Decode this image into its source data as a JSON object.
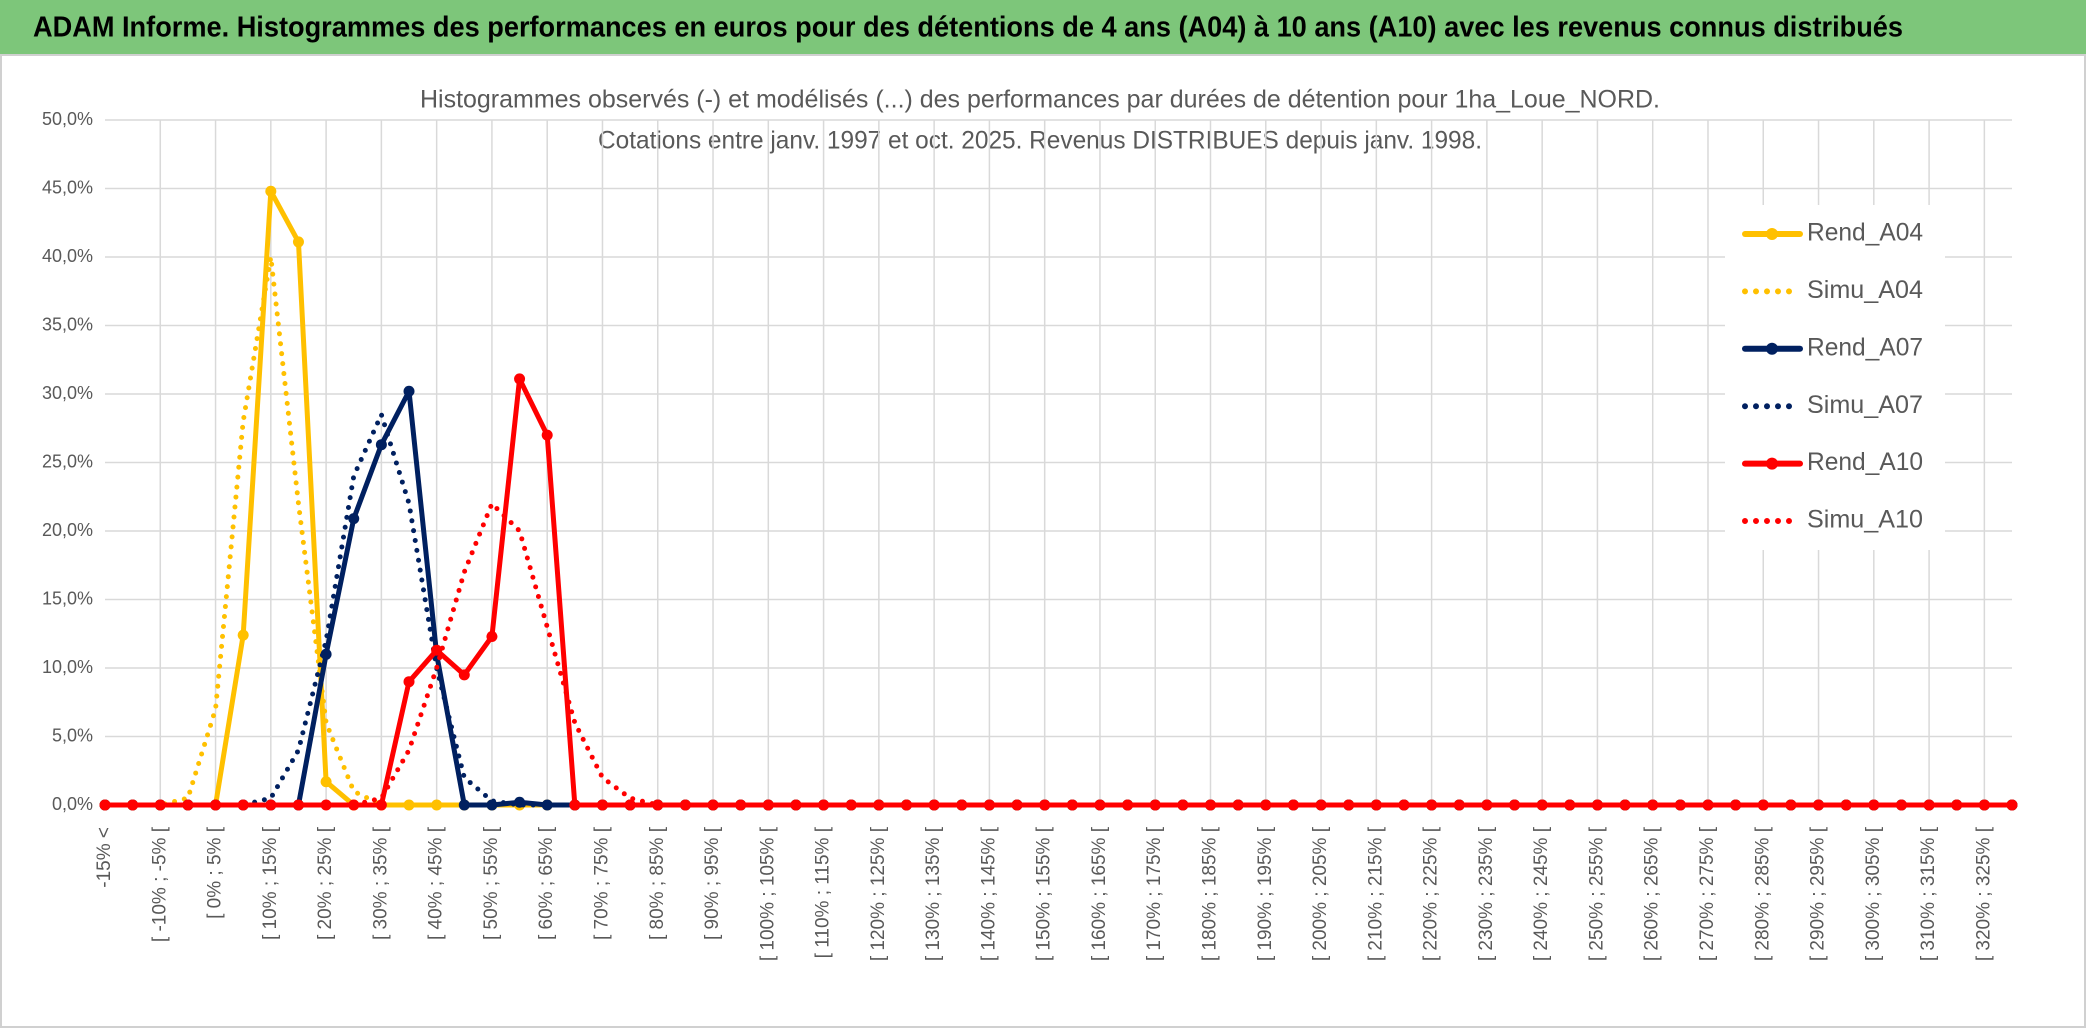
{
  "header": "ADAM Informe. Histogrammes des performances en euros pour des détentions de 4 ans (A04) à 10 ans (A10) avec les revenus connus distribués",
  "chart_data": {
    "type": "line",
    "title": "Histogrammes observés (-) et modélisés (...) des performances par durées de détention pour 1ha_Loue_NORD.",
    "subtitle": "Cotations entre janv. 1997 et oct. 2025. Revenus DISTRIBUES depuis janv. 1998.",
    "categories": [
      "-15% <",
      null,
      "[ -10% ; -5% [",
      null,
      "[ 0% ; 5% [",
      null,
      "[ 10% ; 15% [",
      null,
      "[ 20% ; 25% [",
      null,
      "[ 30% ; 35% [",
      null,
      "[ 40% ; 45% [",
      null,
      "[ 50% ; 55% [",
      null,
      "[ 60% ; 65% [",
      null,
      "[ 70% ; 75% [",
      null,
      "[ 80% ; 85% [",
      null,
      "[ 90% ; 95% [",
      null,
      "[ 100% ; 105% [",
      null,
      "[ 110% ; 115% [",
      null,
      "[ 120% ; 125% [",
      null,
      "[ 130% ; 135% [",
      null,
      "[ 140% ; 145% [",
      null,
      "[ 150% ; 155% [",
      null,
      "[ 160% ; 165% [",
      null,
      "[ 170% ; 175% [",
      null,
      "[ 180% ; 185% [",
      null,
      "[ 190% ; 195% [",
      null,
      "[ 200% ; 205% [",
      null,
      "[ 210% ; 215% [",
      null,
      "[ 220% ; 225% [",
      null,
      "[ 230% ; 235% [",
      null,
      "[ 240% ; 245% [",
      null,
      "[ 250% ; 255% [",
      null,
      "[ 260% ; 265% [",
      null,
      "[ 270% ; 275% [",
      null,
      "[ 280% ; 285% [",
      null,
      "[ 290% ; 295% [",
      null,
      "[ 300% ; 305% [",
      null,
      "[ 310% ; 315% [",
      null,
      "[ 320% ; 325% [",
      null
    ],
    "series": [
      {
        "name": "Rend_A04",
        "color": "#ffc000",
        "line_style": "solid",
        "markers": true,
        "values": [
          0,
          0,
          0,
          0,
          0,
          12.4,
          44.8,
          41.1,
          1.7,
          0,
          0,
          0,
          0,
          0,
          0,
          0,
          0,
          0,
          0,
          0,
          0,
          0,
          0,
          0,
          0,
          0,
          0,
          0,
          0,
          0,
          0,
          0,
          0,
          0,
          0,
          0,
          0,
          0,
          0,
          0,
          0,
          0,
          0,
          0,
          0,
          0,
          0,
          0,
          0,
          0,
          0,
          0,
          0,
          0,
          0,
          0,
          0,
          0,
          0,
          0,
          0,
          0,
          0,
          0,
          0,
          0,
          0,
          0,
          0,
          0
        ]
      },
      {
        "name": "Simu_A04",
        "color": "#ffc000",
        "line_style": "dotted",
        "markers": false,
        "values": [
          0,
          0,
          0,
          0.5,
          7,
          28,
          40,
          22,
          6,
          1,
          0,
          0,
          0,
          0,
          0,
          0,
          0,
          0,
          0,
          0,
          0,
          0,
          0,
          0,
          0,
          0,
          0,
          0,
          0,
          0,
          0,
          0,
          0,
          0,
          0,
          0,
          0,
          0,
          0,
          0,
          0,
          0,
          0,
          0,
          0,
          0,
          0,
          0,
          0,
          0,
          0,
          0,
          0,
          0,
          0,
          0,
          0,
          0,
          0,
          0,
          0,
          0,
          0,
          0,
          0,
          0,
          0,
          0,
          0,
          0
        ]
      },
      {
        "name": "Rend_A07",
        "color": "#002060",
        "line_style": "solid",
        "markers": true,
        "values": [
          0,
          0,
          0,
          0,
          0,
          0,
          0,
          0,
          11,
          20.9,
          26.3,
          30.2,
          11,
          0,
          0,
          0.2,
          0,
          0,
          0,
          0,
          0,
          0,
          0,
          0,
          0,
          0,
          0,
          0,
          0,
          0,
          0,
          0,
          0,
          0,
          0,
          0,
          0,
          0,
          0,
          0,
          0,
          0,
          0,
          0,
          0,
          0,
          0,
          0,
          0,
          0,
          0,
          0,
          0,
          0,
          0,
          0,
          0,
          0,
          0,
          0,
          0,
          0,
          0,
          0,
          0,
          0,
          0,
          0,
          0,
          0
        ]
      },
      {
        "name": "Simu_A07",
        "color": "#002060",
        "line_style": "dotted",
        "markers": false,
        "values": [
          0,
          0,
          0,
          0,
          0,
          0,
          0.5,
          4,
          12,
          24,
          28.5,
          22,
          10,
          2,
          0.3,
          0,
          0,
          0,
          0,
          0,
          0,
          0,
          0,
          0,
          0,
          0,
          0,
          0,
          0,
          0,
          0,
          0,
          0,
          0,
          0,
          0,
          0,
          0,
          0,
          0,
          0,
          0,
          0,
          0,
          0,
          0,
          0,
          0,
          0,
          0,
          0,
          0,
          0,
          0,
          0,
          0,
          0,
          0,
          0,
          0,
          0,
          0,
          0,
          0,
          0,
          0,
          0,
          0,
          0,
          0
        ]
      },
      {
        "name": "Rend_A10",
        "color": "#ff0000",
        "line_style": "solid",
        "markers": true,
        "values": [
          0,
          0,
          0,
          0,
          0,
          0,
          0,
          0,
          0,
          0,
          0,
          9,
          11.3,
          9.5,
          12.3,
          31.1,
          27,
          0,
          0,
          0,
          0,
          0,
          0,
          0,
          0,
          0,
          0,
          0,
          0,
          0,
          0,
          0,
          0,
          0,
          0,
          0,
          0,
          0,
          0,
          0,
          0,
          0,
          0,
          0,
          0,
          0,
          0,
          0,
          0,
          0,
          0,
          0,
          0,
          0,
          0,
          0,
          0,
          0,
          0,
          0,
          0,
          0,
          0,
          0,
          0,
          0,
          0,
          0,
          0,
          0
        ]
      },
      {
        "name": "Simu_A10",
        "color": "#ff0000",
        "line_style": "dotted",
        "markers": false,
        "values": [
          0,
          0,
          0,
          0,
          0,
          0,
          0,
          0,
          0,
          0,
          0.5,
          4,
          10,
          17,
          22,
          20,
          13,
          6,
          2,
          0.5,
          0,
          0,
          0,
          0,
          0,
          0,
          0,
          0,
          0,
          0,
          0,
          0,
          0,
          0,
          0,
          0,
          0,
          0,
          0,
          0,
          0,
          0,
          0,
          0,
          0,
          0,
          0,
          0,
          0,
          0,
          0,
          0,
          0,
          0,
          0,
          0,
          0,
          0,
          0,
          0,
          0,
          0,
          0,
          0,
          0,
          0,
          0,
          0,
          0,
          0
        ]
      }
    ],
    "ylim": [
      0,
      50
    ],
    "yticks": [
      {
        "value": 0,
        "label": "0,0%"
      },
      {
        "value": 5,
        "label": "5,0%"
      },
      {
        "value": 10,
        "label": "10,0%"
      },
      {
        "value": 15,
        "label": "15,0%"
      },
      {
        "value": 20,
        "label": "20,0%"
      },
      {
        "value": 25,
        "label": "25,0%"
      },
      {
        "value": 30,
        "label": "30,0%"
      },
      {
        "value": 35,
        "label": "35,0%"
      },
      {
        "value": 40,
        "label": "40,0%"
      },
      {
        "value": 45,
        "label": "45,0%"
      },
      {
        "value": 50,
        "label": "50,0%"
      }
    ],
    "grid": true,
    "legend": "right"
  }
}
